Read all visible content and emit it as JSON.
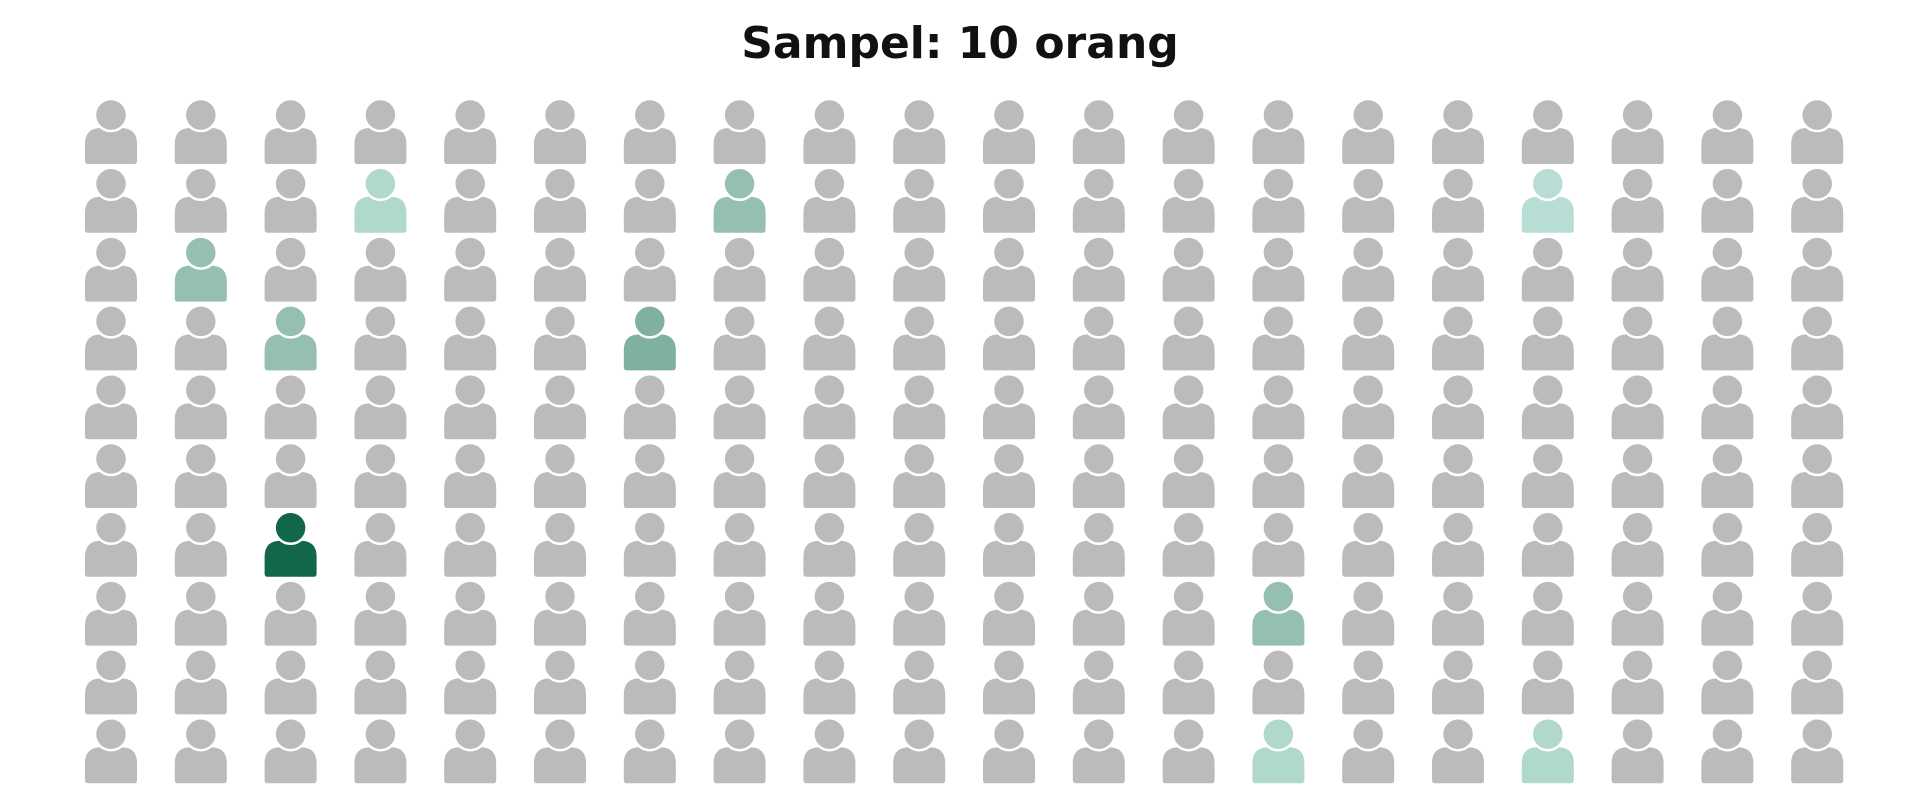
{
  "title": "Sampel: 10 orang",
  "grid": {
    "rows": 10,
    "columns": 20,
    "base_color": "#bbbbbb"
  },
  "highlighted": [
    {
      "row": 1,
      "column": 3,
      "color": "#b0d8cc"
    },
    {
      "row": 1,
      "column": 7,
      "color": "#95c0b0"
    },
    {
      "row": 1,
      "column": 16,
      "color": "#b8ddd4"
    },
    {
      "row": 2,
      "column": 1,
      "color": "#95c0b0"
    },
    {
      "row": 3,
      "column": 2,
      "color": "#95c0b0"
    },
    {
      "row": 3,
      "column": 6,
      "color": "#80b09e"
    },
    {
      "row": 6,
      "column": 2,
      "color": "#12664c"
    },
    {
      "row": 7,
      "column": 13,
      "color": "#95c0b0"
    },
    {
      "row": 9,
      "column": 13,
      "color": "#b0d8cc"
    },
    {
      "row": 9,
      "column": 16,
      "color": "#b0d8cc"
    }
  ]
}
